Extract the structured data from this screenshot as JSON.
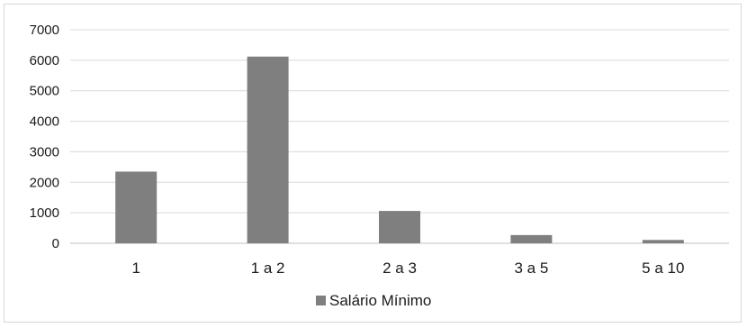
{
  "chart_data": {
    "type": "bar",
    "categories": [
      "1",
      "1 a 2",
      "2 a 3",
      "3 a 5",
      "5 a 10"
    ],
    "series": [
      {
        "name": "Salário Mínimo",
        "values": [
          2350,
          6120,
          1060,
          270,
          110
        ],
        "color": "#7f7f7f"
      }
    ],
    "ylim": [
      0,
      7000
    ],
    "yticks": [
      0,
      1000,
      2000,
      3000,
      4000,
      5000,
      6000,
      7000
    ],
    "ytick_labels": [
      "0",
      "1000",
      "2000",
      "3000",
      "4000",
      "5000",
      "6000",
      "7000"
    ],
    "grid": true,
    "legend_position": "bottom",
    "colors": {
      "bar": "#7f7f7f",
      "grid": "#d9d9d9",
      "axis": "#bfbfbf",
      "text": "#1a1a1a"
    }
  }
}
